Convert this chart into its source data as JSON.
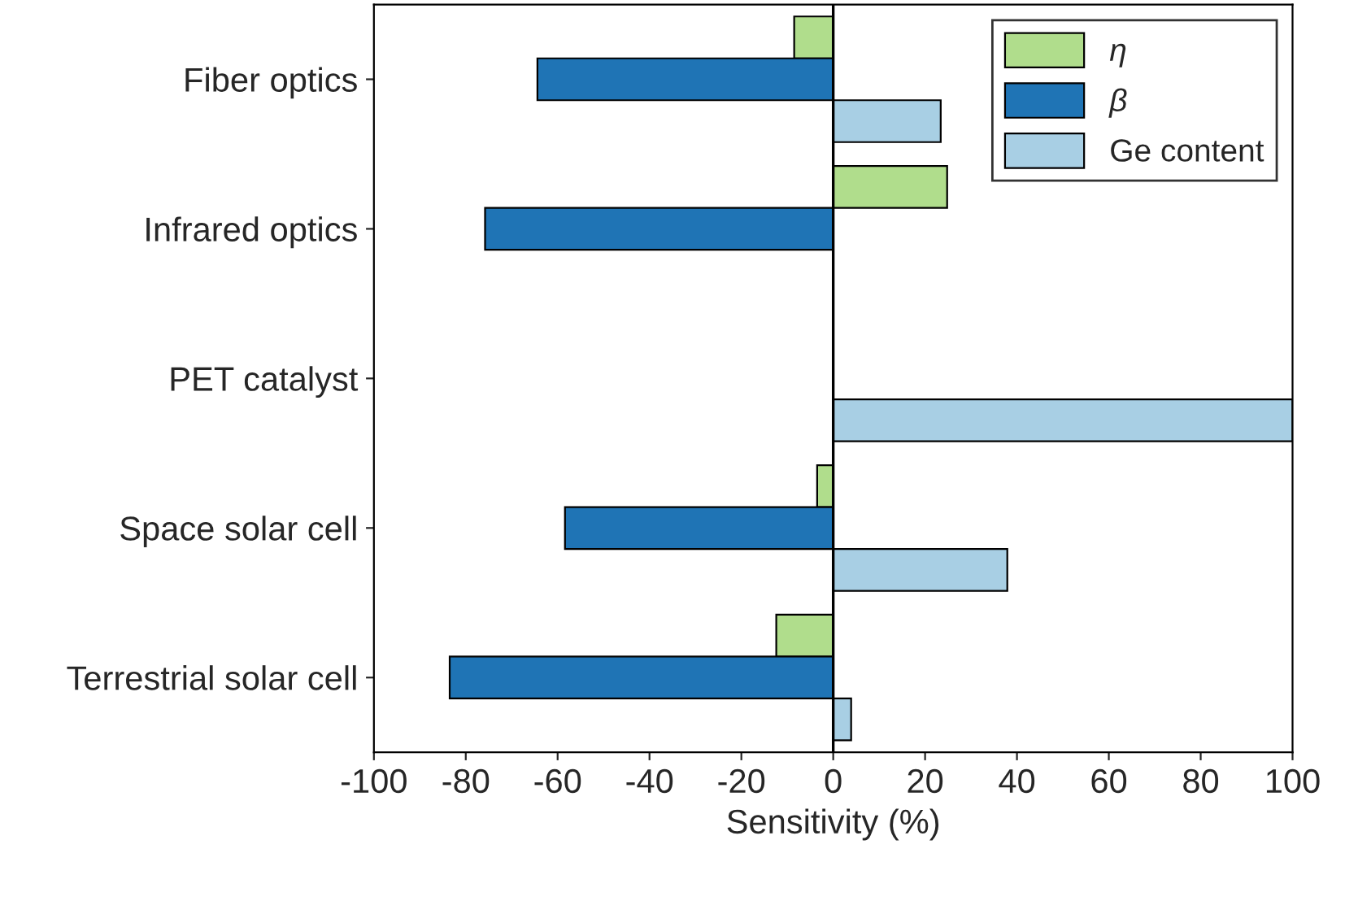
{
  "chart_data": {
    "type": "bar",
    "orientation": "horizontal",
    "categories": [
      "Fiber optics",
      "Infrared optics",
      "PET catalyst",
      "Space solar cell",
      "Terrestrial solar cell"
    ],
    "series": [
      {
        "name": "η",
        "color": "#b0dd8c",
        "values": [
          -8.5,
          24.8,
          null,
          -3.5,
          -12.4
        ]
      },
      {
        "name": "β",
        "color": "#1f74b5",
        "values": [
          -64.4,
          -75.8,
          null,
          -58.4,
          -83.5
        ]
      },
      {
        "name": "Ge content",
        "color": "#a8cfe4",
        "values": [
          23.4,
          null,
          100,
          37.9,
          3.9
        ]
      }
    ],
    "xlabel": "Sensitivity (%)",
    "xlim": [
      -100,
      100
    ],
    "xticks": [
      -100,
      -80,
      -60,
      -40,
      -20,
      0,
      20,
      40,
      60,
      80,
      100
    ],
    "ref_lines": [
      {
        "axis": "x",
        "value": 0,
        "label": null,
        "color": "#000000"
      }
    ],
    "grid": false,
    "legend": "top right"
  }
}
